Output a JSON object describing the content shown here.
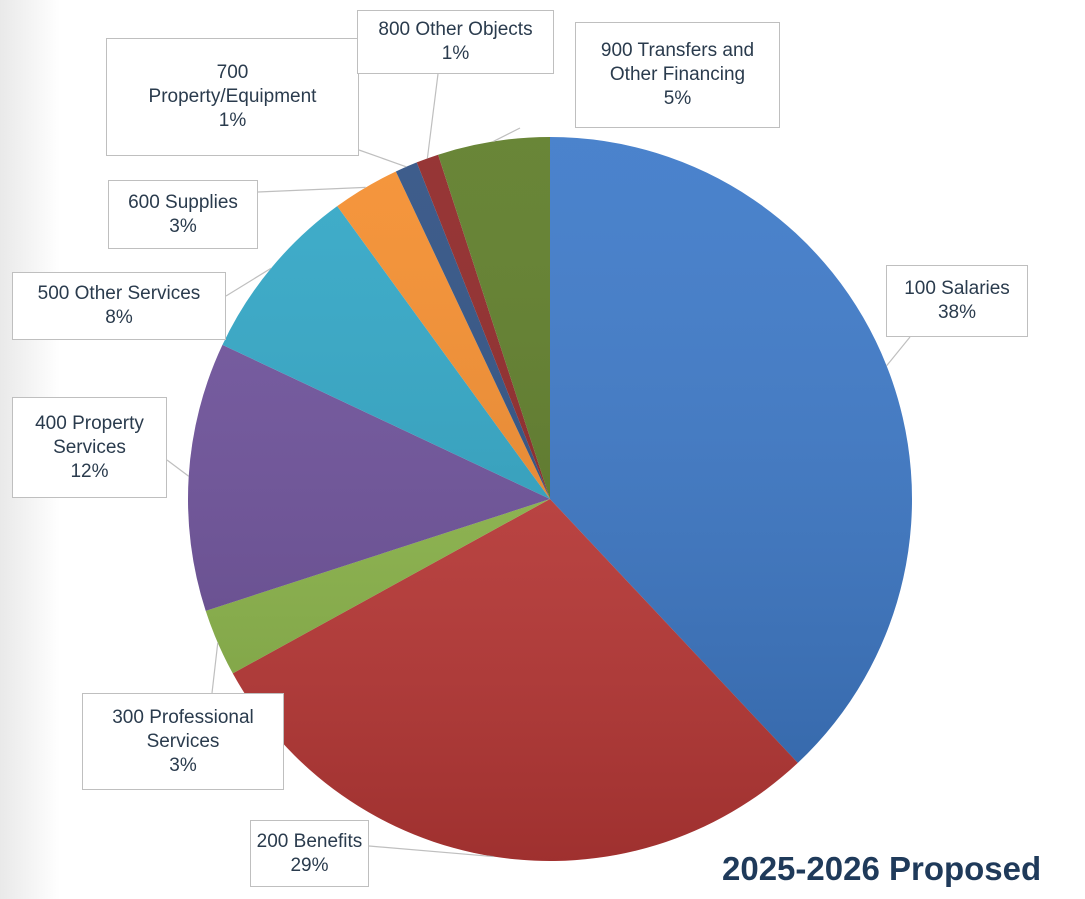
{
  "chart_data": {
    "type": "pie",
    "title": "2025-2026 Proposed",
    "categories": [
      "100 Salaries",
      "200 Benefits",
      "300 Professional Services",
      "400 Property Services",
      "500 Other Services",
      "600 Supplies",
      "700 Property/Equipment",
      "800 Other Objects",
      "900 Transfers and Other Financing"
    ],
    "values": [
      38,
      29,
      3,
      12,
      8,
      3,
      1,
      1,
      5
    ],
    "value_labels": [
      "38%",
      "29%",
      "3%",
      "12%",
      "8%",
      "3%",
      "1%",
      "1%",
      "5%"
    ],
    "colors": [
      "#3b78c8",
      "#c23b39",
      "#8fba4b",
      "#6e519c",
      "#2fa6c6",
      "#f58d2c",
      "#2d4f82",
      "#8e2525",
      "#5c7b26"
    ]
  }
}
